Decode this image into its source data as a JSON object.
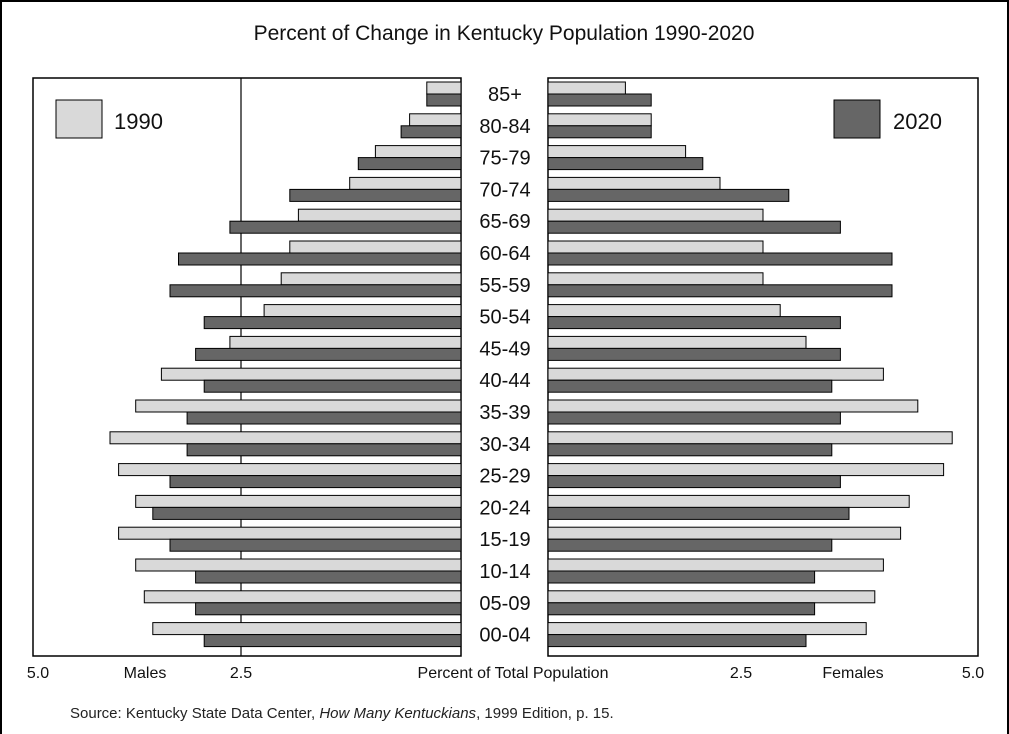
{
  "chart_data": {
    "type": "bar",
    "orientation": "horizontal",
    "title": "Percent of Change in Kentucky Population 1990-2020",
    "xlabel": "Percent of Total Population",
    "left_label": "Males",
    "right_label": "Females",
    "xlim": [
      0,
      5.0
    ],
    "x_ticks": [
      "5.0",
      "2.5",
      "2.5",
      "5.0"
    ],
    "legend_position": "top-left / top-right",
    "grid": false,
    "categories": [
      "85+",
      "80-84",
      "75-79",
      "70-74",
      "65-69",
      "60-64",
      "55-59",
      "50-54",
      "45-49",
      "40-44",
      "35-39",
      "30-34",
      "25-29",
      "20-24",
      "15-19",
      "10-14",
      "05-09",
      "00-04"
    ],
    "series": [
      {
        "name": "1990",
        "color": "#d9d9d9",
        "males": [
          0.4,
          0.6,
          1.0,
          1.3,
          1.9,
          2.0,
          2.1,
          2.3,
          2.7,
          3.5,
          3.8,
          4.1,
          4.0,
          3.8,
          4.0,
          3.8,
          3.7,
          3.6
        ],
        "females": [
          0.9,
          1.2,
          1.6,
          2.0,
          2.5,
          2.5,
          2.5,
          2.7,
          3.0,
          3.9,
          4.3,
          4.7,
          4.6,
          4.2,
          4.1,
          3.9,
          3.8,
          3.7
        ]
      },
      {
        "name": "2020",
        "color": "#666666",
        "males": [
          0.4,
          0.7,
          1.2,
          2.0,
          2.7,
          3.3,
          3.4,
          3.0,
          3.1,
          3.0,
          3.2,
          3.2,
          3.4,
          3.6,
          3.4,
          3.1,
          3.1,
          3.0
        ],
        "females": [
          1.2,
          1.2,
          1.8,
          2.8,
          3.4,
          4.0,
          4.0,
          3.4,
          3.4,
          3.3,
          3.4,
          3.3,
          3.4,
          3.5,
          3.3,
          3.1,
          3.1,
          3.0
        ]
      }
    ]
  },
  "source": {
    "prefix": "Source:  Kentucky State Data Center, ",
    "title": "How Many Kentuckians",
    "suffix": ", 1999 Edition, p. 15."
  }
}
